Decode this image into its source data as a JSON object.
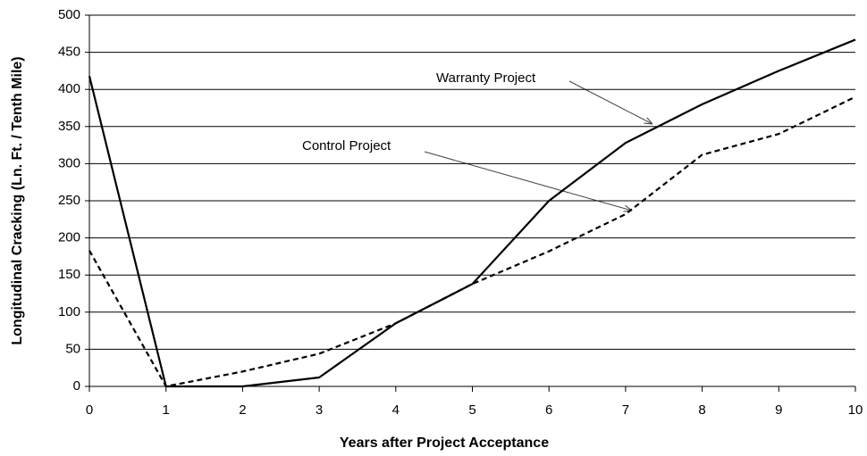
{
  "chart_data": {
    "type": "line",
    "xlabel": "Years after Project Acceptance",
    "ylabel": "Longitudinal Cracking (Ln. Ft. / Tenth Mile)",
    "x": [
      0,
      1,
      2,
      3,
      4,
      5,
      6,
      7,
      8,
      9,
      10
    ],
    "series": [
      {
        "name": "Warranty Project",
        "color": "#000000",
        "dash": false,
        "values": [
          418,
          0,
          0,
          12,
          85,
          138,
          250,
          328,
          380,
          425,
          467
        ]
      },
      {
        "name": "Control Project",
        "color": "#000000",
        "dash": true,
        "values": [
          183,
          0,
          20,
          44,
          85,
          138,
          182,
          232,
          312,
          340,
          390
        ]
      }
    ],
    "annotations": [
      "Warranty Project",
      "Control Project"
    ],
    "xlim": [
      0,
      10
    ],
    "xticks": [
      0,
      1,
      2,
      3,
      4,
      5,
      6,
      7,
      8,
      9,
      10
    ],
    "ylim": [
      0,
      500
    ],
    "yticks": [
      0,
      50,
      100,
      150,
      200,
      250,
      300,
      350,
      400,
      450,
      500
    ],
    "grid": true
  }
}
